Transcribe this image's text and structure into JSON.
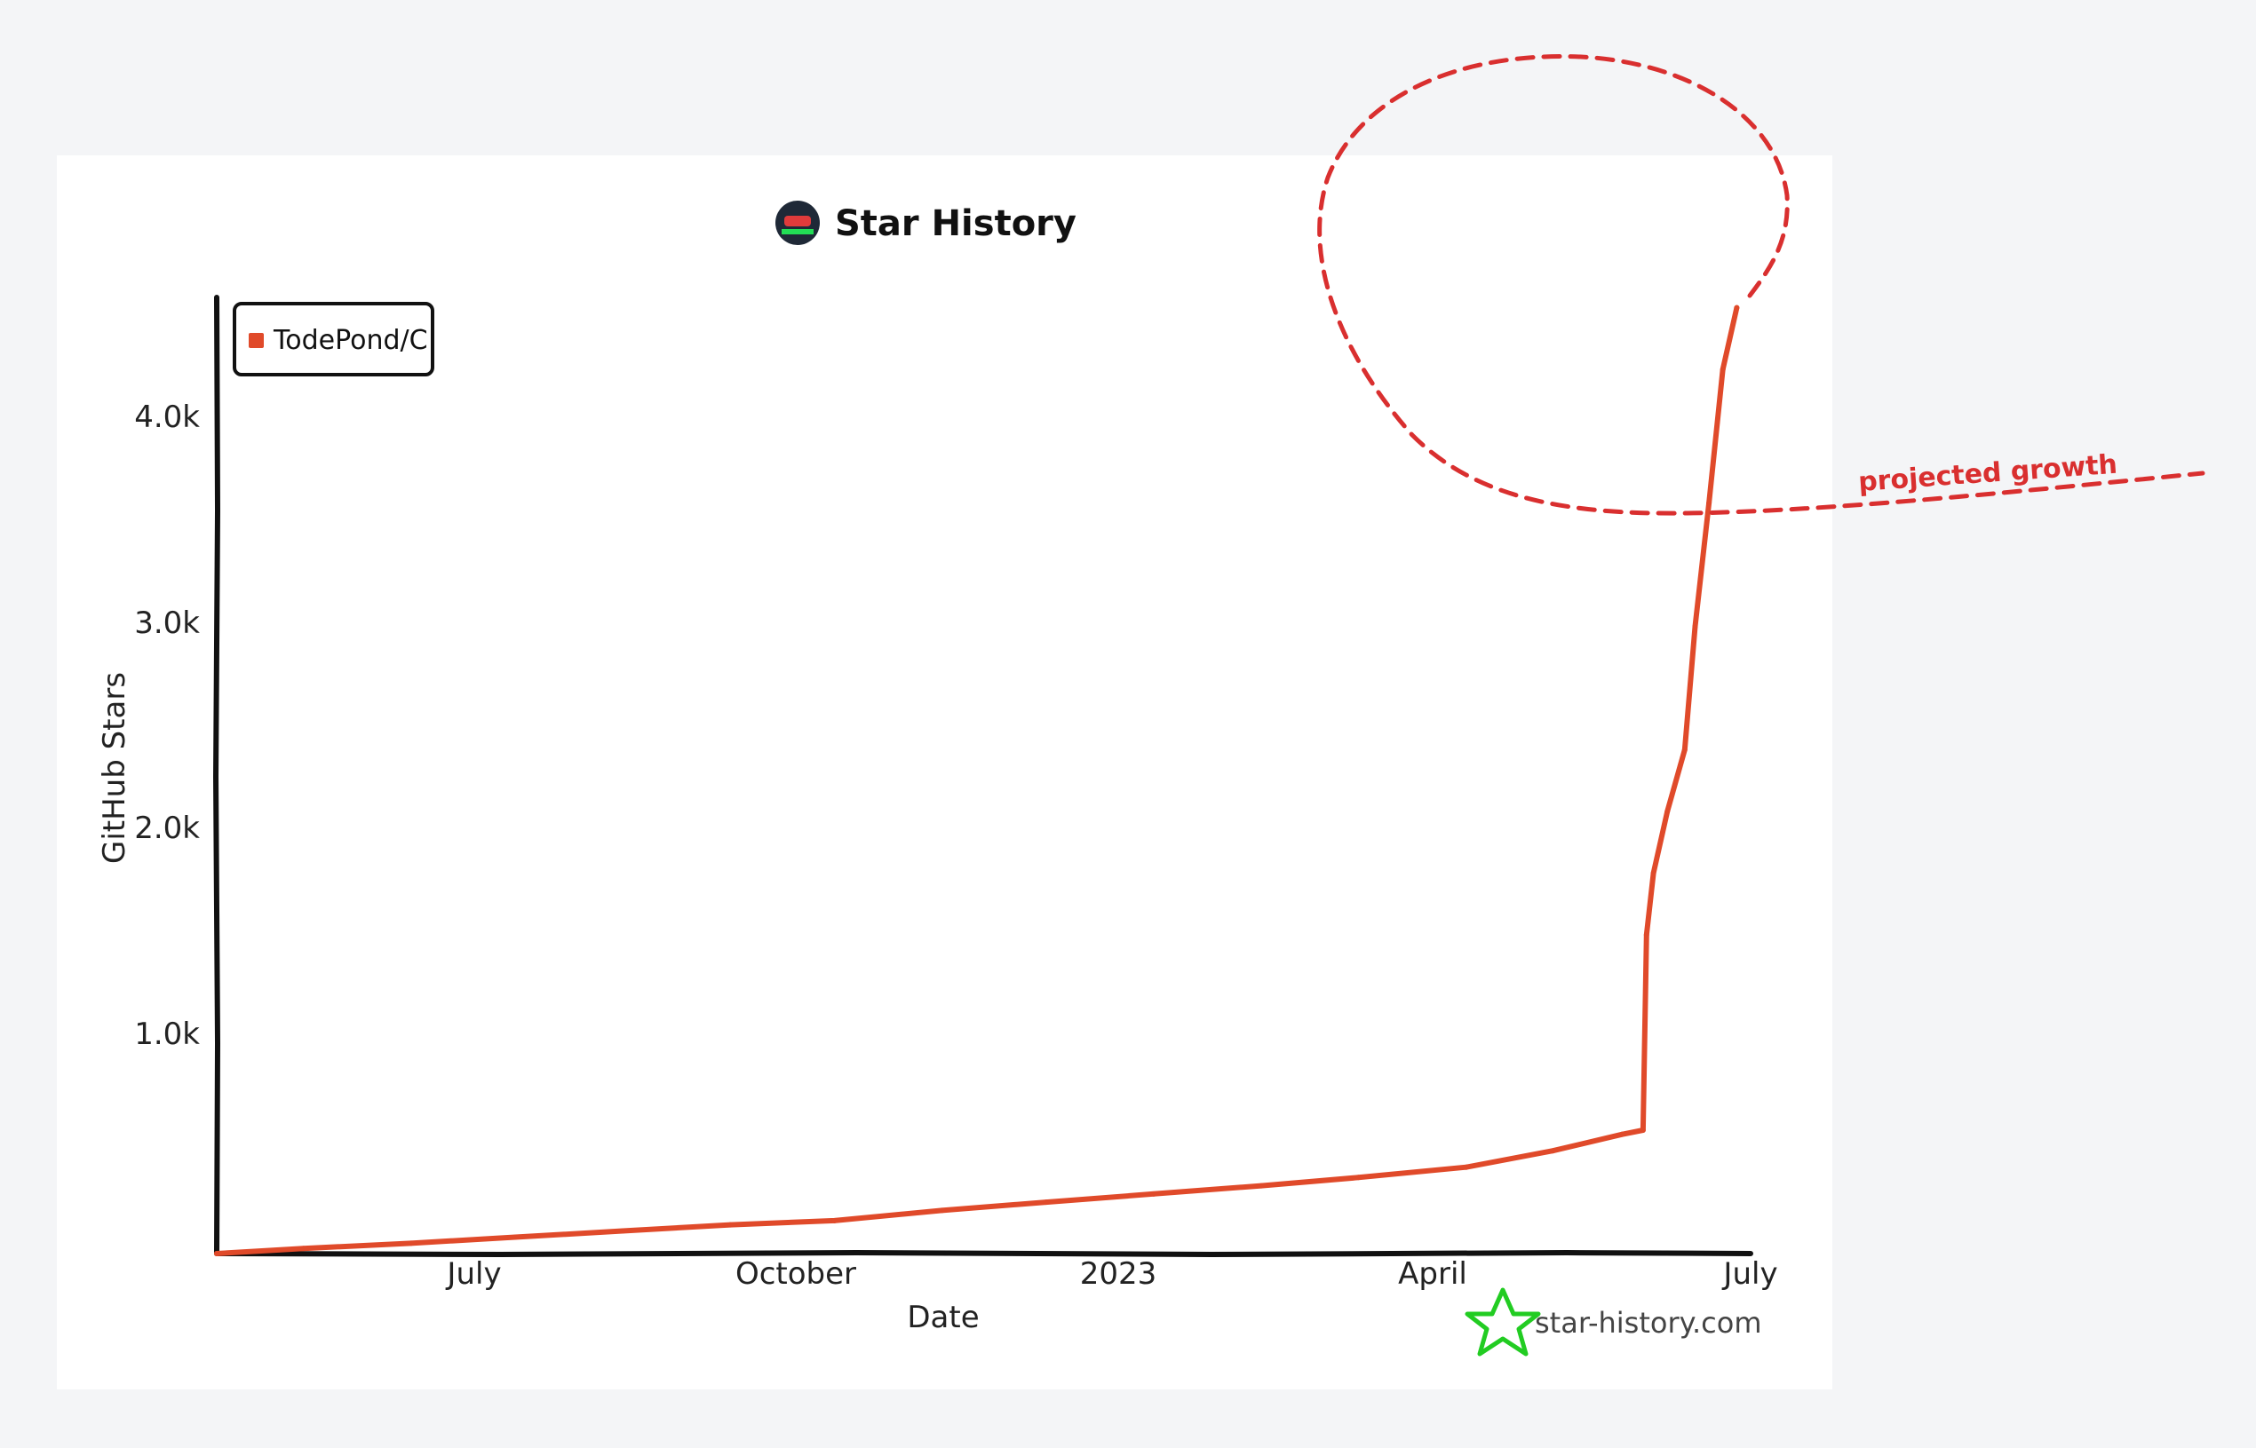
{
  "chart_data": {
    "type": "line",
    "title": "Star History",
    "xlabel": "Date",
    "ylabel": "GitHub Stars",
    "x_tick_labels": [
      "July",
      "October",
      "2023",
      "April",
      "July"
    ],
    "y_tick_labels": [
      "1.0k",
      "2.0k",
      "3.0k",
      "4.0k"
    ],
    "ylim": [
      0,
      4600
    ],
    "xlim": [
      "2022-04-20",
      "2023-07-06"
    ],
    "grid": false,
    "legend_position": "top-left",
    "series": [
      {
        "name": "TodePond/C",
        "color": "#e04a2a",
        "x": [
          "2022-04-20",
          "2022-05-15",
          "2022-06-15",
          "2022-07-15",
          "2022-08-15",
          "2022-09-15",
          "2022-10-15",
          "2022-11-15",
          "2022-12-15",
          "2023-01-15",
          "2023-02-15",
          "2023-03-15",
          "2023-04-15",
          "2023-05-10",
          "2023-05-30",
          "2023-06-05",
          "2023-06-06",
          "2023-06-08",
          "2023-06-12",
          "2023-06-17",
          "2023-06-20",
          "2023-06-24",
          "2023-06-28",
          "2023-07-02"
        ],
        "values": [
          0,
          25,
          50,
          80,
          110,
          140,
          160,
          210,
          250,
          290,
          330,
          370,
          420,
          500,
          580,
          600,
          1550,
          1850,
          2150,
          2450,
          3050,
          3650,
          4300,
          4600
        ]
      }
    ]
  },
  "annotation": {
    "label": "projected growth",
    "color": "#d92f2f"
  },
  "branding": {
    "site": "star-history.com",
    "logo_color": "#33cc33"
  }
}
